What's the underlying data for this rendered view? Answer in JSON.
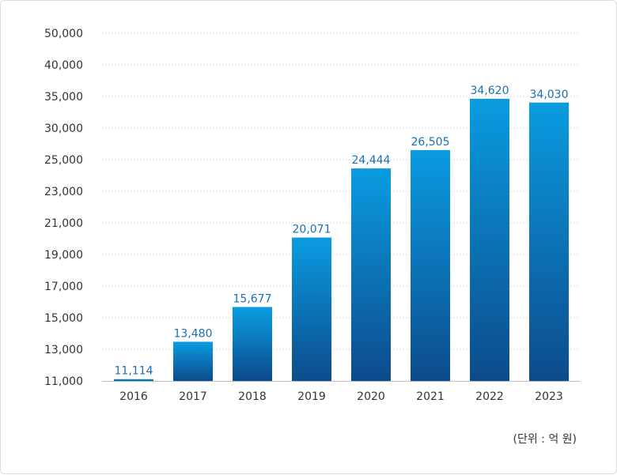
{
  "chart_data": {
    "type": "bar",
    "title": "",
    "xlabel": "",
    "ylabel": "",
    "categories": [
      "2016",
      "2017",
      "2018",
      "2019",
      "2020",
      "2021",
      "2022",
      "2023"
    ],
    "values": [
      11114,
      13480,
      15677,
      20071,
      24444,
      26505,
      34620,
      34030
    ],
    "value_labels": [
      "11,114",
      "13,480",
      "15,677",
      "20,071",
      "24,444",
      "26,505",
      "34,620",
      "34,030"
    ],
    "y_ticks": [
      "11,000",
      "13,000",
      "15,000",
      "17,000",
      "19,000",
      "21,000",
      "23,000",
      "25,000",
      "30,000",
      "35,000",
      "40,000",
      "50,000"
    ],
    "y_tick_values": [
      11000,
      13000,
      15000,
      17000,
      19000,
      21000,
      23000,
      25000,
      30000,
      35000,
      40000,
      50000
    ],
    "scale": "piecewise (non-linear axis)",
    "grid": true,
    "legend": "none",
    "unit_note": "(단위 : 억 원)",
    "colors": {
      "bar_top": "#0a9ce0",
      "bar_bottom": "#0c4b8c",
      "label": "#1a6fb5",
      "grid": "#d9d9d9",
      "text": "#333333"
    }
  }
}
